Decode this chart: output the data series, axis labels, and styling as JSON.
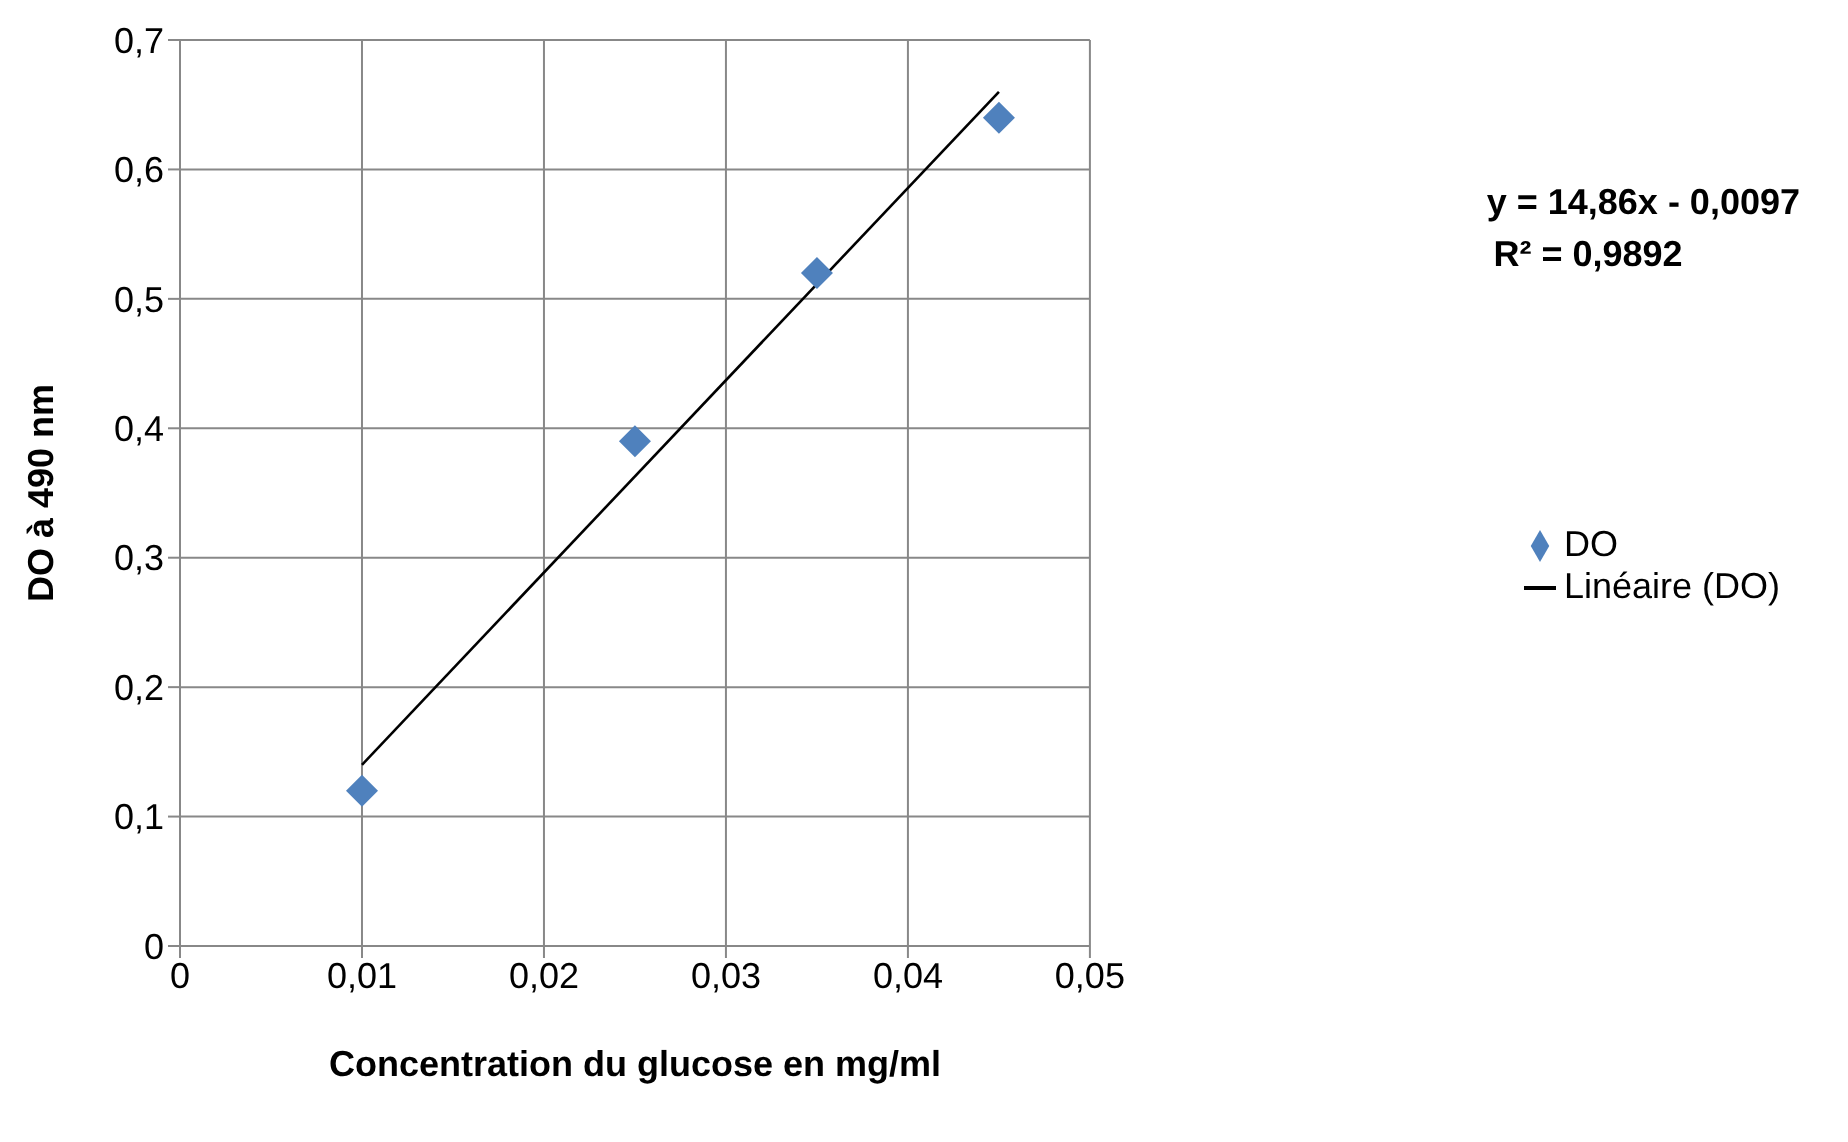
{
  "chart_data": {
    "type": "scatter",
    "xlabel": "Concentration du glucose en mg/ml",
    "ylabel": "DO à 490 nm",
    "x": [
      0.01,
      0.025,
      0.035,
      0.045
    ],
    "series": [
      {
        "name": "DO",
        "color": "#4f81bd",
        "marker": "diamond",
        "values": [
          0.12,
          0.39,
          0.52,
          0.64
        ]
      },
      {
        "name": "Linéaire (DO)",
        "type": "line",
        "color": "#000000",
        "marker": "none",
        "x": [
          0.01,
          0.045
        ],
        "values": [
          0.14,
          0.66
        ]
      }
    ],
    "xlim": [
      0,
      0.05
    ],
    "xticks": [
      0,
      {
        "value": 0.01,
        "label": "0,01"
      },
      {
        "value": 0.02,
        "label": "0,02"
      },
      {
        "value": 0.03,
        "label": "0,03"
      },
      {
        "value": 0.04,
        "label": "0,04"
      },
      {
        "value": 0.05,
        "label": "0,05"
      }
    ],
    "ylim": [
      0,
      0.7
    ],
    "yticks": [
      0,
      {
        "value": 0.1,
        "label": "0,1"
      },
      {
        "value": 0.2,
        "label": "0,2"
      },
      {
        "value": 0.3,
        "label": "0,3"
      },
      {
        "value": 0.4,
        "label": "0,4"
      },
      {
        "value": 0.5,
        "label": "0,5"
      },
      {
        "value": 0.6,
        "label": "0,6"
      },
      {
        "value": 0.7,
        "label": "0,7"
      }
    ],
    "grid": true,
    "legend": "right",
    "annotations": [
      "y = 14,86x - 0,0097",
      "R² = 0,9892"
    ]
  }
}
